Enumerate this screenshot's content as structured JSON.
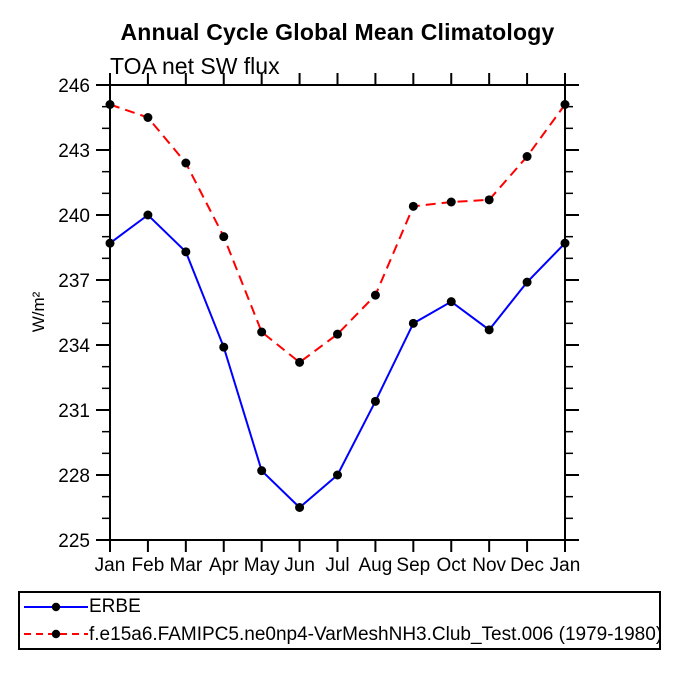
{
  "header": {
    "title": "Annual Cycle Global Mean Climatology",
    "subtitle": "TOA net SW flux"
  },
  "chart_data": {
    "type": "line",
    "title": "Annual Cycle Global Mean Climatology",
    "subtitle": "TOA net SW flux",
    "xlabel": "",
    "ylabel": "W/m²",
    "categories": [
      "Jan",
      "Feb",
      "Mar",
      "Apr",
      "May",
      "Jun",
      "Jul",
      "Aug",
      "Sep",
      "Oct",
      "Nov",
      "Dec",
      "Jan"
    ],
    "ylim": [
      225,
      246
    ],
    "ytick_major_step": 3,
    "ytick_minor_step": 1,
    "grid": false,
    "legend_position": "bottom",
    "series": [
      {
        "name": "ERBE",
        "color": "#0000ff",
        "line_style": "solid",
        "marker": "dot",
        "marker_color": "#000000",
        "values": [
          238.7,
          240.0,
          238.3,
          233.9,
          228.2,
          226.5,
          228.0,
          231.4,
          235.0,
          236.0,
          234.7,
          236.9,
          238.7
        ]
      },
      {
        "name": "f.e15a6.FAMIPC5.ne0np4-VarMeshNH3.Club_Test.006 (1979-1980)",
        "color": "#ff0000",
        "line_style": "dashed",
        "marker": "dot",
        "marker_color": "#000000",
        "values": [
          245.1,
          244.5,
          242.4,
          239.0,
          234.6,
          233.2,
          234.5,
          236.3,
          240.4,
          240.6,
          240.7,
          242.7,
          245.1
        ]
      }
    ]
  },
  "legend": {
    "entries": [
      {
        "label": "ERBE"
      },
      {
        "label": "f.e15a6.FAMIPC5.ne0np4-VarMeshNH3.Club_Test.006 (1979-1980)"
      }
    ]
  }
}
